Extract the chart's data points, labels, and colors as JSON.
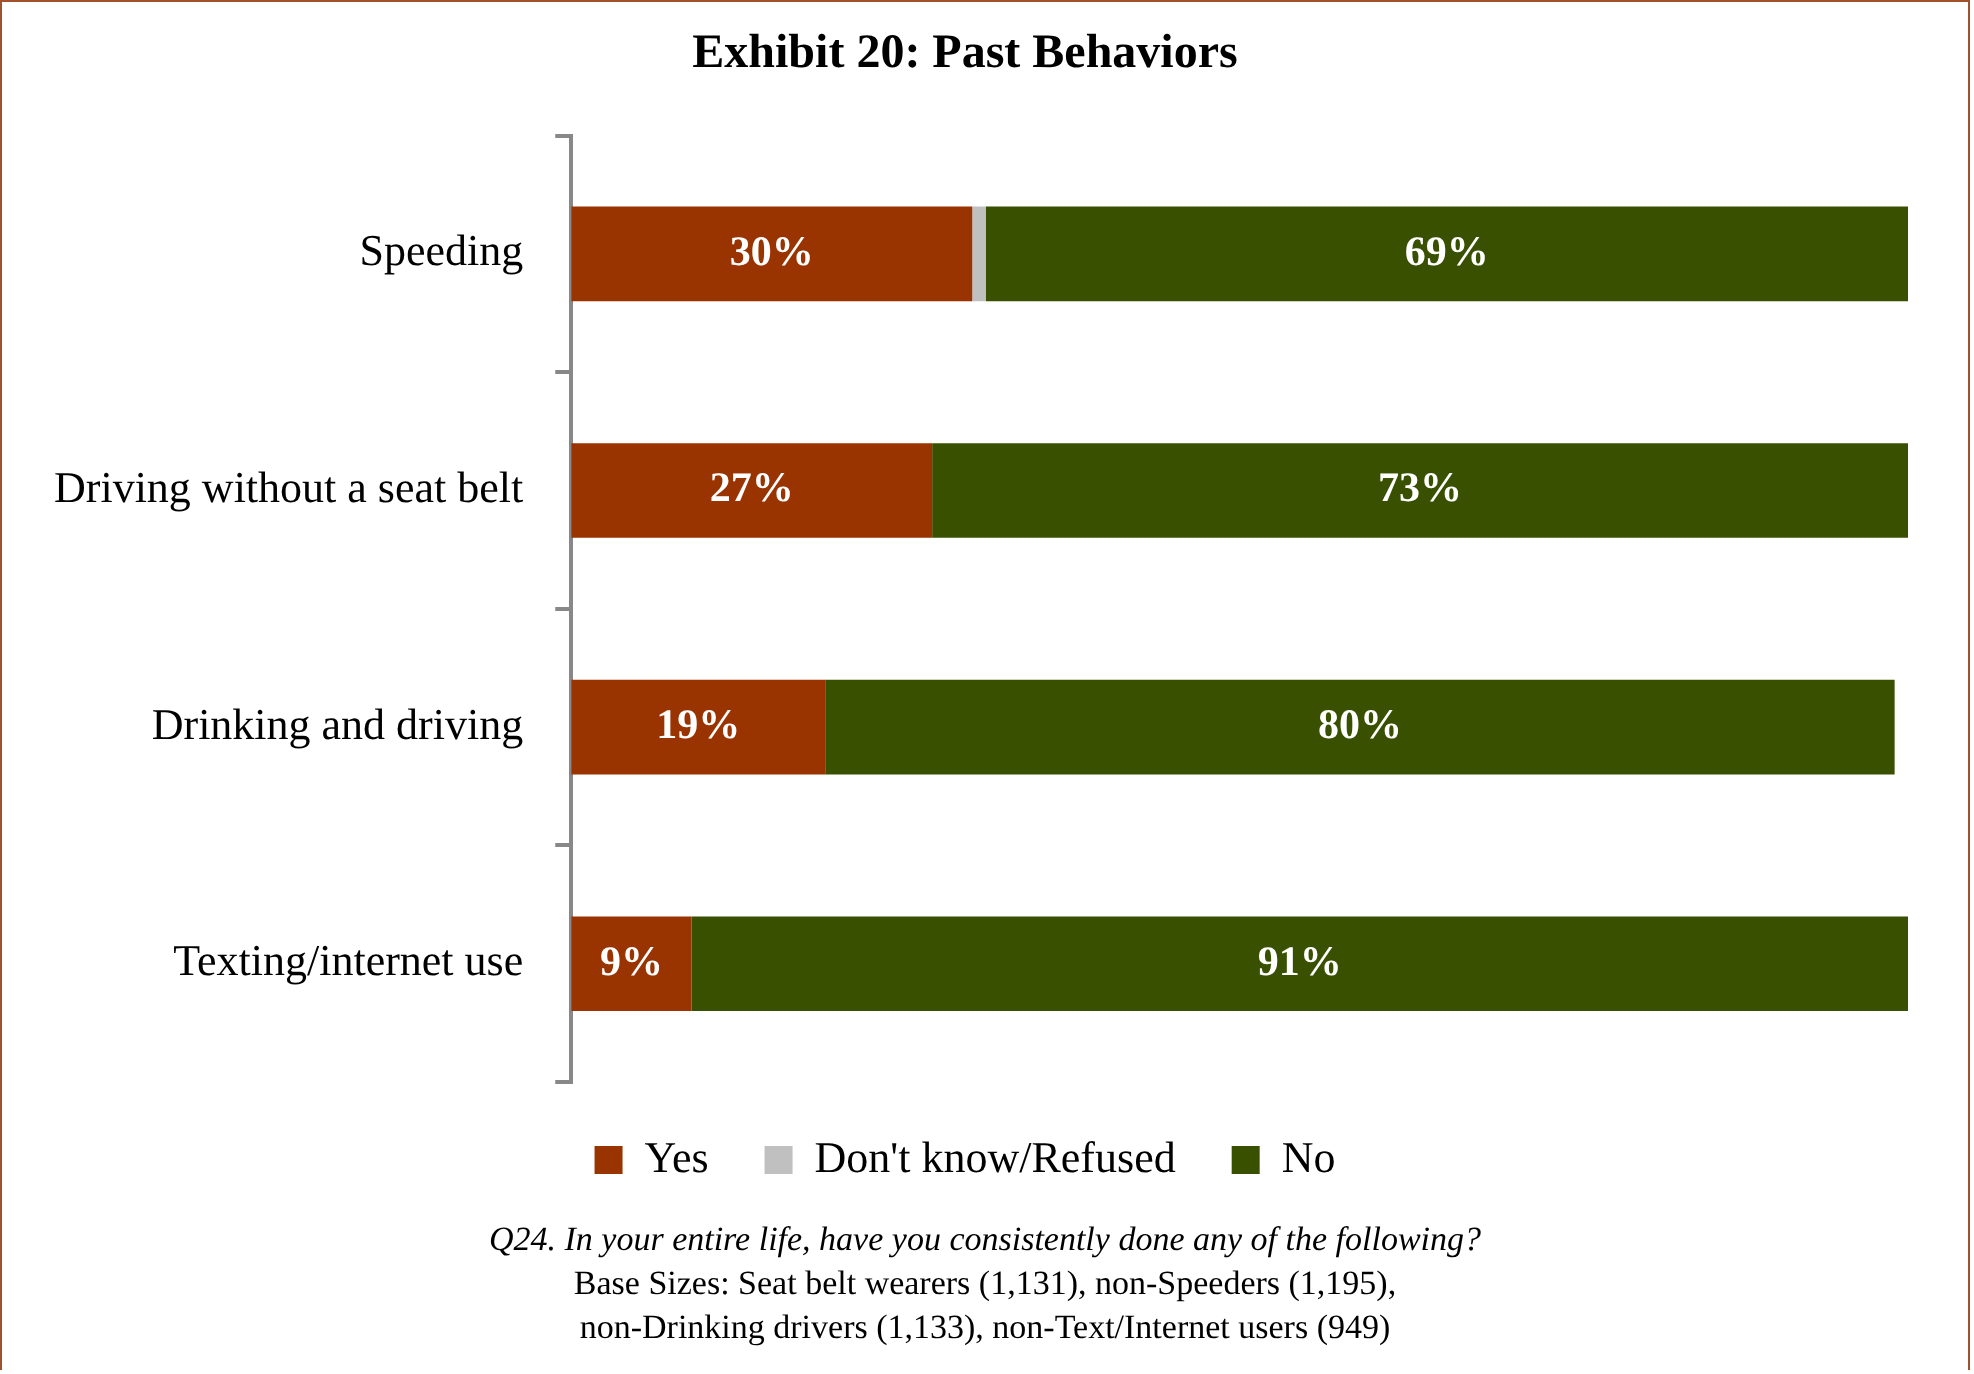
{
  "chart_data": {
    "type": "bar",
    "orientation": "horizontal",
    "stacked": true,
    "title": "Exhibit 20: Past Behaviors",
    "categories": [
      "Speeding",
      "Driving without a seat belt",
      "Drinking and driving",
      "Texting/internet use"
    ],
    "series": [
      {
        "name": "Yes",
        "color": "#993300",
        "values": [
          30,
          27,
          19,
          9
        ],
        "value_labels": [
          "30%",
          "27%",
          "19%",
          "9%"
        ]
      },
      {
        "name": "Don't know/Refused",
        "color": "#c0c0c0",
        "values": [
          1,
          0,
          0,
          0
        ]
      },
      {
        "name": "No",
        "color": "#385000",
        "values": [
          69,
          73,
          80,
          91
        ],
        "value_labels": [
          "69%",
          "73%",
          "80%",
          "91%"
        ]
      }
    ],
    "legend": "bottom",
    "grid": false,
    "annotations": [
      "Q24. In your entire life, have you consistently done any of the following?",
      "Base Sizes: Seat belt wearers (1,131), non-Speeders (1,195),",
      "non-Drinking drivers (1,133), non-Text/Internet users (949)"
    ]
  }
}
